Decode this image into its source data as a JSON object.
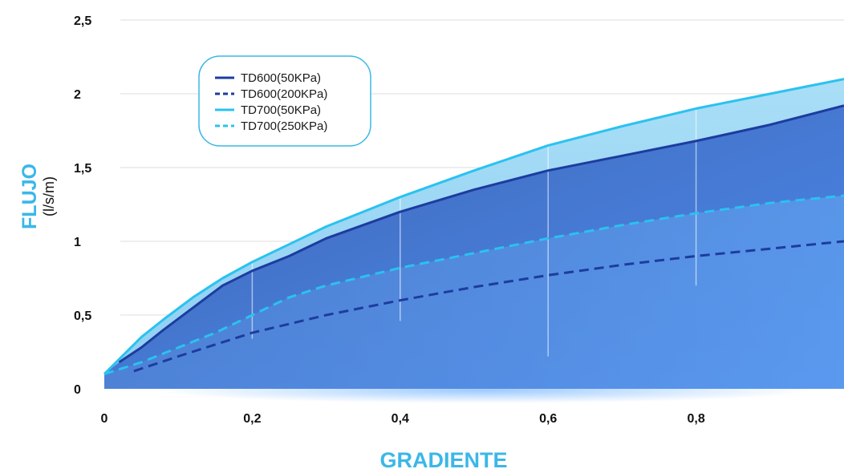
{
  "chart_data": {
    "type": "area",
    "x_ticks": [
      "0",
      "0,2",
      "0,4",
      "0,6",
      "0,8"
    ],
    "y_ticks": [
      "0",
      "0,5",
      "1",
      "1,5",
      "2",
      "2,5"
    ],
    "xlabel": "GRADIENTE",
    "ylabel": "FLUJO",
    "yunit": "(l/s/m)",
    "xlim": [
      0,
      1.0
    ],
    "ylim": [
      0,
      2.5
    ],
    "grid": true,
    "legend_position": "top-left",
    "series": [
      {
        "name": "TD600(50KPa)",
        "color": "#1d3c9f",
        "dash": "solid",
        "x": [
          0.02,
          0.05,
          0.08,
          0.12,
          0.16,
          0.2,
          0.25,
          0.3,
          0.4,
          0.5,
          0.6,
          0.7,
          0.8,
          0.9,
          1.0
        ],
        "y": [
          0.18,
          0.28,
          0.4,
          0.55,
          0.7,
          0.8,
          0.9,
          1.02,
          1.2,
          1.35,
          1.48,
          1.58,
          1.68,
          1.79,
          1.92
        ]
      },
      {
        "name": "TD600(200KPa)",
        "color": "#1d3c9f",
        "dash": "dashed",
        "x": [
          0.04,
          0.1,
          0.2,
          0.3,
          0.4,
          0.5,
          0.6,
          0.7,
          0.8,
          0.9,
          1.0
        ],
        "y": [
          0.12,
          0.22,
          0.38,
          0.5,
          0.6,
          0.69,
          0.77,
          0.84,
          0.9,
          0.95,
          1.0
        ]
      },
      {
        "name": "TD700(50KPa)",
        "color": "#2ac2f0",
        "dash": "solid",
        "x": [
          0.0,
          0.02,
          0.05,
          0.08,
          0.12,
          0.16,
          0.2,
          0.25,
          0.3,
          0.4,
          0.5,
          0.6,
          0.7,
          0.8,
          0.9,
          1.0
        ],
        "y": [
          0.1,
          0.2,
          0.35,
          0.47,
          0.62,
          0.75,
          0.86,
          0.98,
          1.1,
          1.3,
          1.48,
          1.65,
          1.78,
          1.9,
          2.0,
          2.1
        ]
      },
      {
        "name": "TD700(250KPa)",
        "color": "#2ac2f0",
        "dash": "dashed",
        "x": [
          0.0,
          0.05,
          0.1,
          0.15,
          0.2,
          0.25,
          0.3,
          0.4,
          0.5,
          0.6,
          0.7,
          0.8,
          0.9,
          1.0
        ],
        "y": [
          0.1,
          0.18,
          0.28,
          0.38,
          0.5,
          0.62,
          0.7,
          0.82,
          0.92,
          1.02,
          1.11,
          1.19,
          1.26,
          1.31
        ]
      }
    ]
  }
}
